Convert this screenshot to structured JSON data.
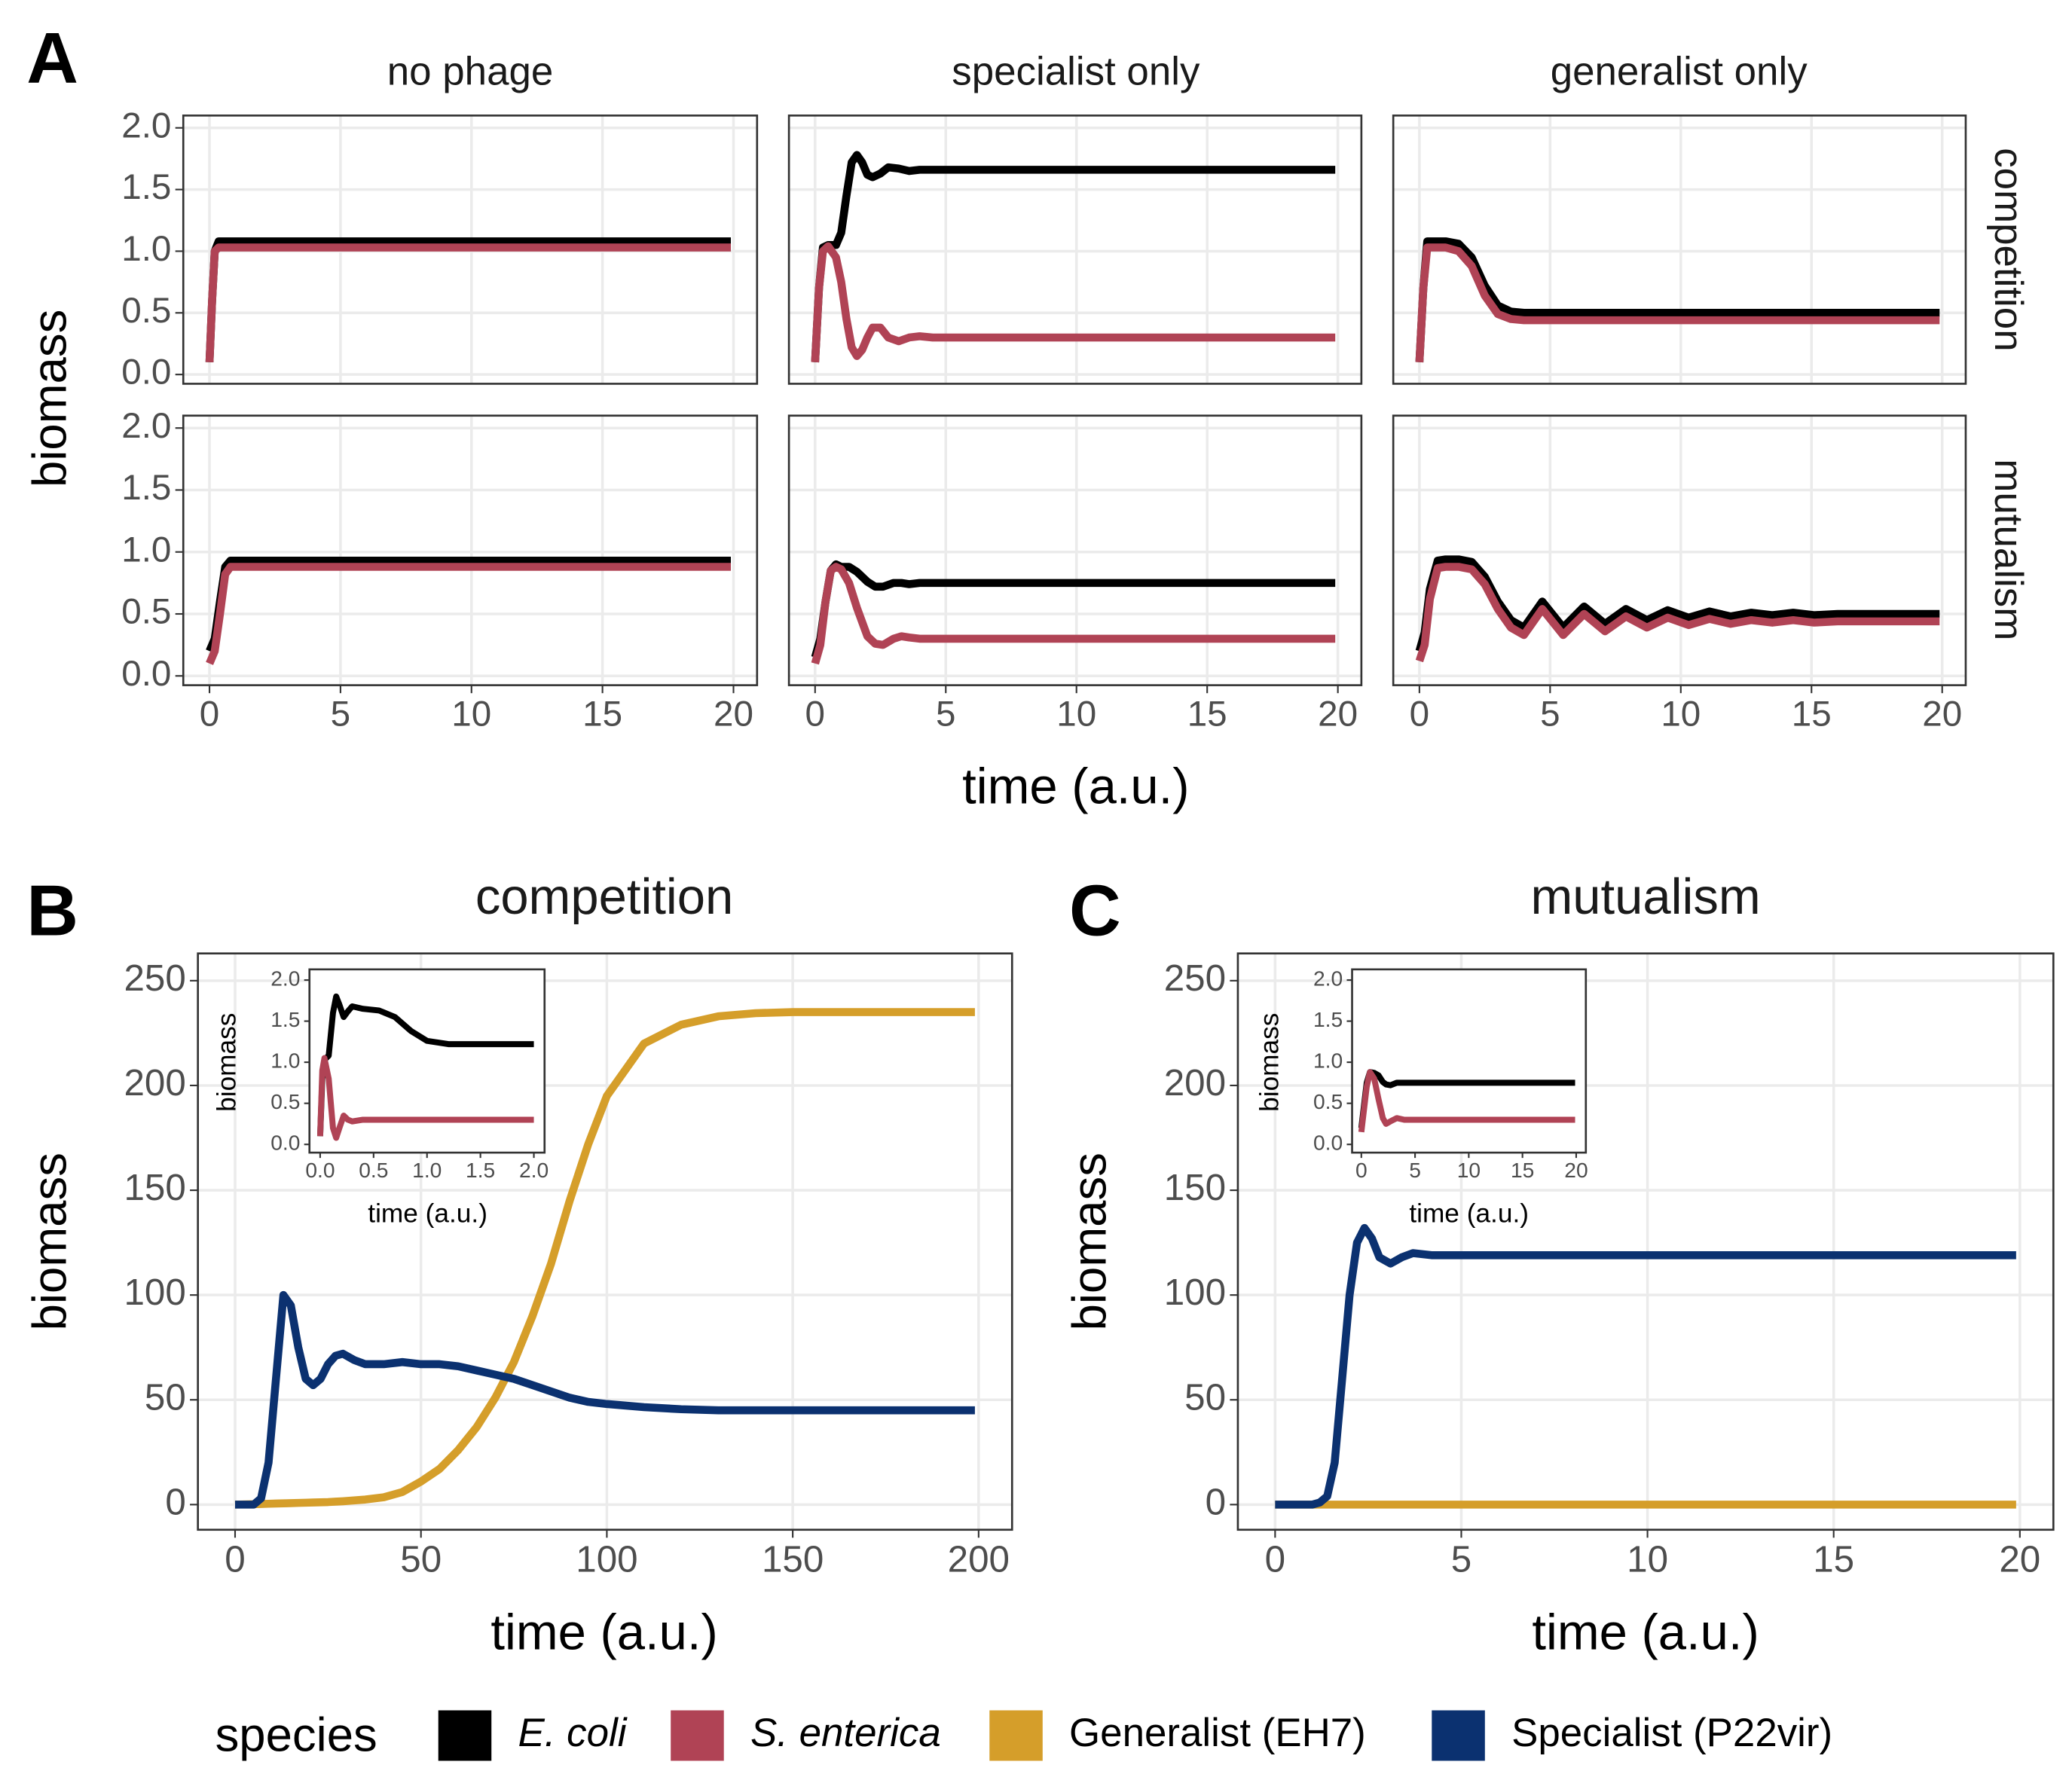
{
  "chart_data": [
    {
      "type": "line",
      "panel": "A",
      "title": "no phage",
      "ylabel": "biomass",
      "x": [
        0,
        0.1,
        0.2,
        0.35,
        1,
        5,
        10,
        15,
        19.9
      ],
      "series": [
        {
          "name": "E. coli",
          "italic": true,
          "color": "#000000",
          "values": [
            0.1,
            0.6,
            1.0,
            1.08,
            1.08,
            1.08,
            1.08,
            1.08,
            1.08
          ]
        },
        {
          "name": "S. enterica",
          "italic": true,
          "color": "#b04355",
          "values": [
            0.1,
            0.6,
            1.0,
            1.03,
            1.03,
            1.03,
            1.03,
            1.03,
            1.03
          ]
        }
      ],
      "xlim": [
        -1,
        20.9
      ],
      "ylim": [
        -0.075,
        2.1
      ],
      "xticks": [
        0,
        5,
        10,
        15,
        20
      ],
      "yticks": [
        {
          "value": 0,
          "label": "0.0"
        },
        {
          "value": 0.5,
          "label": "0.5"
        },
        {
          "value": 1,
          "label": "1.0"
        },
        {
          "value": 1.5,
          "label": "1.5"
        },
        {
          "value": 2,
          "label": "2.0"
        }
      ],
      "grid": true,
      "xtick_labels": false,
      "ytick_labels": true
    },
    {
      "type": "line",
      "title": "specialist only",
      "x": [
        0,
        0.15,
        0.3,
        0.5,
        0.8,
        1.0,
        1.2,
        1.4,
        1.6,
        1.8,
        2.0,
        2.2,
        2.5,
        2.8,
        3.2,
        3.6,
        4.0,
        4.5,
        5,
        10,
        15,
        19.9
      ],
      "series": [
        {
          "color": "#000000",
          "values": [
            0.1,
            0.7,
            1.03,
            1.05,
            1.05,
            1.15,
            1.45,
            1.72,
            1.78,
            1.72,
            1.62,
            1.6,
            1.63,
            1.68,
            1.67,
            1.65,
            1.66,
            1.66,
            1.66,
            1.66,
            1.66,
            1.66
          ]
        },
        {
          "color": "#b04355",
          "values": [
            0.1,
            0.7,
            1.0,
            1.04,
            0.95,
            0.75,
            0.45,
            0.22,
            0.15,
            0.2,
            0.3,
            0.38,
            0.38,
            0.3,
            0.27,
            0.3,
            0.31,
            0.3,
            0.3,
            0.3,
            0.3,
            0.3
          ]
        }
      ],
      "xlim": [
        -1,
        20.9
      ],
      "ylim": [
        -0.075,
        2.1
      ],
      "xticks": [
        0,
        5,
        10,
        15,
        20
      ],
      "yticks": [
        0,
        0.5,
        1,
        1.5,
        2
      ],
      "grid": true,
      "xtick_labels": false,
      "ytick_labels": false
    },
    {
      "type": "line",
      "title": "generalist only",
      "row_label": "competition",
      "x": [
        0,
        0.15,
        0.3,
        1,
        1.5,
        2,
        2.5,
        3,
        3.5,
        4,
        5,
        10,
        15,
        19.9
      ],
      "series": [
        {
          "color": "#000000",
          "values": [
            0.1,
            0.7,
            1.08,
            1.08,
            1.06,
            0.95,
            0.72,
            0.56,
            0.51,
            0.5,
            0.5,
            0.5,
            0.5,
            0.5
          ]
        },
        {
          "color": "#b04355",
          "values": [
            0.1,
            0.7,
            1.03,
            1.03,
            1.0,
            0.88,
            0.64,
            0.49,
            0.45,
            0.44,
            0.44,
            0.44,
            0.44,
            0.44
          ]
        }
      ],
      "xlim": [
        -1,
        20.9
      ],
      "ylim": [
        -0.075,
        2.1
      ],
      "xticks": [
        0,
        5,
        10,
        15,
        20
      ],
      "yticks": [
        0,
        0.5,
        1,
        1.5,
        2
      ],
      "grid": true,
      "xtick_labels": false,
      "ytick_labels": false
    },
    {
      "type": "line",
      "x": [
        0,
        0.2,
        0.4,
        0.6,
        0.8,
        1,
        5,
        10,
        15,
        19.9
      ],
      "series": [
        {
          "color": "#000000",
          "values": [
            0.2,
            0.3,
            0.6,
            0.88,
            0.93,
            0.93,
            0.93,
            0.93,
            0.93,
            0.93
          ]
        },
        {
          "color": "#b04355",
          "values": [
            0.1,
            0.2,
            0.5,
            0.82,
            0.88,
            0.88,
            0.88,
            0.88,
            0.88,
            0.88
          ]
        }
      ],
      "xlim": [
        -1,
        20.9
      ],
      "ylim": [
        -0.075,
        2.1
      ],
      "xticks": [
        0,
        5,
        10,
        15,
        20
      ],
      "yticks": [
        {
          "value": 0,
          "label": "0.0"
        },
        {
          "value": 0.5,
          "label": "0.5"
        },
        {
          "value": 1,
          "label": "1.0"
        },
        {
          "value": 1.5,
          "label": "1.5"
        },
        {
          "value": 2,
          "label": "2.0"
        }
      ],
      "grid": true,
      "xtick_labels": true,
      "ytick_labels": true
    },
    {
      "type": "line",
      "xlabel": "time (a.u.)",
      "x": [
        0,
        0.2,
        0.4,
        0.6,
        0.8,
        1.0,
        1.3,
        1.6,
        2.0,
        2.3,
        2.6,
        3.0,
        3.3,
        3.6,
        4,
        5,
        10,
        15,
        19.9
      ],
      "series": [
        {
          "color": "#000000",
          "values": [
            0.15,
            0.3,
            0.6,
            0.85,
            0.9,
            0.88,
            0.88,
            0.84,
            0.76,
            0.72,
            0.72,
            0.75,
            0.75,
            0.74,
            0.75,
            0.75,
            0.75,
            0.75,
            0.75
          ]
        },
        {
          "color": "#b04355",
          "values": [
            0.1,
            0.25,
            0.6,
            0.85,
            0.88,
            0.86,
            0.75,
            0.55,
            0.32,
            0.26,
            0.25,
            0.3,
            0.32,
            0.31,
            0.3,
            0.3,
            0.3,
            0.3,
            0.3
          ]
        }
      ],
      "xlim": [
        -1,
        20.9
      ],
      "ylim": [
        -0.075,
        2.1
      ],
      "xticks": [
        0,
        5,
        10,
        15,
        20
      ],
      "yticks": [
        0,
        0.5,
        1,
        1.5,
        2
      ],
      "grid": true,
      "xtick_labels": true,
      "ytick_labels": false
    },
    {
      "type": "line",
      "row_label": "mutualism",
      "x": [
        0,
        0.2,
        0.4,
        0.7,
        1,
        1.5,
        2,
        2.5,
        3,
        3.5,
        4,
        4.7,
        5.5,
        6.3,
        7.1,
        7.9,
        8.7,
        9.5,
        10.3,
        11.1,
        11.9,
        12.7,
        13.5,
        14.3,
        15.1,
        16,
        17,
        18,
        19.9
      ],
      "series": [
        {
          "color": "#000000",
          "values": [
            0.2,
            0.35,
            0.7,
            0.93,
            0.94,
            0.94,
            0.92,
            0.8,
            0.6,
            0.45,
            0.39,
            0.6,
            0.39,
            0.56,
            0.42,
            0.54,
            0.45,
            0.53,
            0.47,
            0.52,
            0.48,
            0.51,
            0.49,
            0.51,
            0.49,
            0.5,
            0.5,
            0.5,
            0.5
          ]
        },
        {
          "color": "#b04355",
          "values": [
            0.12,
            0.25,
            0.62,
            0.87,
            0.88,
            0.88,
            0.86,
            0.74,
            0.54,
            0.39,
            0.33,
            0.54,
            0.33,
            0.5,
            0.36,
            0.48,
            0.39,
            0.47,
            0.41,
            0.46,
            0.42,
            0.45,
            0.43,
            0.45,
            0.43,
            0.44,
            0.44,
            0.44,
            0.44
          ]
        }
      ],
      "xlim": [
        -1,
        20.9
      ],
      "ylim": [
        -0.075,
        2.1
      ],
      "xticks": [
        0,
        5,
        10,
        15,
        20
      ],
      "yticks": [
        0,
        0.5,
        1,
        1.5,
        2
      ],
      "grid": true,
      "xtick_labels": true,
      "ytick_labels": false
    },
    {
      "type": "line",
      "panel": "B",
      "title": "competition",
      "xlabel": "time (a.u.)",
      "ylabel": "biomass",
      "x": [
        0,
        5,
        7,
        9,
        11,
        13,
        15,
        17,
        19,
        21,
        23,
        25,
        27,
        29,
        32,
        35,
        40,
        45,
        50,
        55,
        60,
        65,
        70,
        75,
        80,
        85,
        90,
        95,
        100,
        110,
        120,
        130,
        140,
        150,
        160,
        180,
        199
      ],
      "series": [
        {
          "name": "Generalist (EH7)",
          "color": "#d59e2a",
          "values": [
            0,
            0.2,
            0.3,
            0.4,
            0.5,
            0.6,
            0.7,
            0.8,
            0.9,
            1,
            1.1,
            1.2,
            1.4,
            1.6,
            2,
            2.4,
            3.5,
            6,
            11,
            17,
            26,
            37,
            51,
            68,
            90,
            115,
            145,
            172,
            195,
            220,
            229,
            233,
            234.5,
            235,
            235,
            235,
            235
          ]
        },
        {
          "name": "Specialist (P22vir)",
          "color": "#0b3170",
          "values": [
            0,
            0,
            3,
            20,
            60,
            100,
            95,
            75,
            60,
            57,
            60,
            67,
            71,
            72,
            69,
            67,
            67,
            68,
            67,
            67,
            66,
            64,
            62,
            60,
            57,
            54,
            51,
            49,
            48,
            46.5,
            45.5,
            45,
            45,
            45,
            45,
            45,
            45
          ]
        }
      ],
      "xlim": [
        -10,
        209
      ],
      "ylim": [
        -12,
        263
      ],
      "xticks": [
        0,
        50,
        100,
        150,
        200
      ],
      "yticks": [
        0,
        50,
        100,
        150,
        200,
        250
      ],
      "grid": true,
      "xtick_labels": true,
      "ytick_labels": true
    },
    {
      "type": "line",
      "xlabel": "time (a.u.)",
      "ylabel": "biomass",
      "x": [
        0,
        0.02,
        0.04,
        0.08,
        0.12,
        0.15,
        0.18,
        0.22,
        0.26,
        0.3,
        0.4,
        0.55,
        0.7,
        0.85,
        1.0,
        1.2,
        1.5,
        2.0
      ],
      "series": [
        {
          "color": "#000000",
          "values": [
            0.1,
            0.8,
            1.03,
            1.08,
            1.6,
            1.8,
            1.7,
            1.55,
            1.62,
            1.68,
            1.65,
            1.63,
            1.55,
            1.38,
            1.26,
            1.22,
            1.22,
            1.22
          ]
        },
        {
          "color": "#b04355",
          "values": [
            0.1,
            0.9,
            1.05,
            0.8,
            0.2,
            0.08,
            0.2,
            0.35,
            0.3,
            0.28,
            0.3,
            0.3,
            0.3,
            0.3,
            0.3,
            0.3,
            0.3,
            0.3
          ]
        }
      ],
      "xlim": [
        -0.1,
        2.1
      ],
      "ylim": [
        -0.1,
        2.13
      ],
      "xticks": [
        {
          "value": 0,
          "label": "0.0"
        },
        {
          "value": 0.5,
          "label": "0.5"
        },
        {
          "value": 1,
          "label": "1.0"
        },
        {
          "value": 1.5,
          "label": "1.5"
        },
        {
          "value": 2,
          "label": "2.0"
        }
      ],
      "yticks": [
        {
          "value": 0,
          "label": "0.0"
        },
        {
          "value": 0.5,
          "label": "0.5"
        },
        {
          "value": 1,
          "label": "1.0"
        },
        {
          "value": 1.5,
          "label": "1.5"
        },
        {
          "value": 2,
          "label": "2.0"
        }
      ],
      "grid": false,
      "xtick_labels": true,
      "ytick_labels": true
    },
    {
      "type": "line",
      "panel": "C",
      "title": "mutualism",
      "xlabel": "time (a.u.)",
      "ylabel": "biomass",
      "x": [
        0,
        1,
        1.2,
        1.4,
        1.6,
        1.8,
        2.0,
        2.2,
        2.4,
        2.6,
        2.8,
        3.1,
        3.4,
        3.7,
        4.2,
        5,
        10,
        15,
        19.9
      ],
      "series": [
        {
          "color": "#d59e2a",
          "values": [
            0,
            0,
            0,
            0,
            0,
            0,
            0,
            0,
            0,
            0,
            0,
            0,
            0,
            0,
            0,
            0,
            0,
            0,
            0
          ]
        },
        {
          "color": "#0b3170",
          "values": [
            0,
            0,
            1,
            4,
            20,
            60,
            100,
            125,
            132,
            127,
            118,
            115,
            118,
            120,
            119,
            119,
            119,
            119,
            119
          ]
        }
      ],
      "xlim": [
        -1,
        20.9
      ],
      "ylim": [
        -12,
        263
      ],
      "xticks": [
        0,
        5,
        10,
        15,
        20
      ],
      "yticks": [
        0,
        50,
        100,
        150,
        200,
        250
      ],
      "grid": true,
      "xtick_labels": true,
      "ytick_labels": true
    },
    {
      "type": "line",
      "xlabel": "time (a.u.)",
      "ylabel": "biomass",
      "x": [
        0,
        0.5,
        0.8,
        1.2,
        1.6,
        2.0,
        2.3,
        2.7,
        3.3,
        4,
        5,
        10,
        15,
        19.9
      ],
      "series": [
        {
          "color": "#000000",
          "values": [
            0.2,
            0.75,
            0.88,
            0.87,
            0.84,
            0.76,
            0.73,
            0.72,
            0.75,
            0.75,
            0.75,
            0.75,
            0.75,
            0.75
          ]
        },
        {
          "color": "#b04355",
          "values": [
            0.15,
            0.7,
            0.88,
            0.8,
            0.55,
            0.32,
            0.25,
            0.28,
            0.32,
            0.3,
            0.3,
            0.3,
            0.3,
            0.3
          ]
        }
      ],
      "xlim": [
        -0.86,
        20.9
      ],
      "ylim": [
        -0.1,
        2.13
      ],
      "xticks": [
        0,
        5,
        10,
        15,
        20
      ],
      "yticks": [
        {
          "value": 0,
          "label": "0.0"
        },
        {
          "value": 0.5,
          "label": "0.5"
        },
        {
          "value": 1,
          "label": "1.0"
        },
        {
          "value": 1.5,
          "label": "1.5"
        },
        {
          "value": 2,
          "label": "2.0"
        }
      ],
      "grid": false,
      "xtick_labels": true,
      "ytick_labels": true
    }
  ],
  "legend_title": "species"
}
